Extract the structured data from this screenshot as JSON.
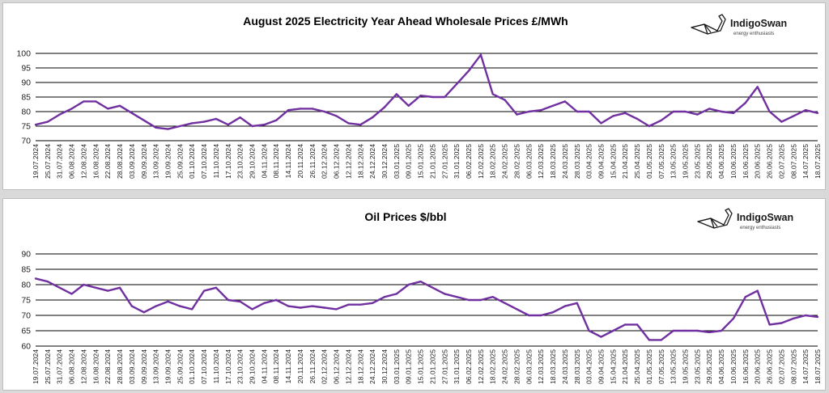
{
  "chart_data": [
    {
      "type": "line",
      "title": "August 2025 Electricity Year Ahead Wholesale Prices £/MWh",
      "ylim": [
        70,
        100
      ],
      "yticks": [
        70,
        75,
        80,
        85,
        90,
        95,
        100
      ],
      "grid": true,
      "line_color": "#7030a0",
      "x": [
        "19.07.2024",
        "25.07.2024",
        "31.07.2024",
        "06.08.2024",
        "12.08.2024",
        "16.08.2024",
        "22.08.2024",
        "28.08.2024",
        "03.09.2024",
        "09.09.2024",
        "13.09.2024",
        "19.09.2024",
        "25.09.2024",
        "01.10.2024",
        "07.10.2024",
        "11.10.2024",
        "17.10.2024",
        "23.10.2024",
        "29.10.2024",
        "04.11.2024",
        "08.11.2024",
        "14.11.2024",
        "20.11.2024",
        "26.11.2024",
        "02.12.2024",
        "06.12.2024",
        "12.12.2024",
        "18.12.2024",
        "24.12.2024",
        "30.12.2024",
        "03.01.2025",
        "09.01.2025",
        "15.01.2025",
        "21.01.2025",
        "27.01.2025",
        "31.01.2025",
        "06.02.2025",
        "12.02.2025",
        "18.02.2025",
        "24.02.2025",
        "28.02.2025",
        "06.03.2025",
        "12.03.2025",
        "18.03.2025",
        "24.03.2025",
        "28.03.2025",
        "03.04.2025",
        "09.04.2025",
        "15.04.2025",
        "21.04.2025",
        "25.04.2025",
        "01.05.2025",
        "07.05.2025",
        "13.05.2025",
        "19.05.2025",
        "23.05.2025",
        "29.05.2025",
        "04.06.2025",
        "10.06.2025",
        "16.06.2025",
        "20.06.2025",
        "26.06.2025",
        "02.07.2025",
        "08.07.2025",
        "14.07.2025",
        "18.07.2025"
      ],
      "values": [
        75.5,
        76.5,
        79,
        81,
        83.5,
        83.5,
        81,
        82,
        79.5,
        77,
        74.5,
        74,
        75,
        76,
        76.5,
        77.5,
        75.5,
        78,
        75,
        75.5,
        77,
        80.5,
        81,
        81,
        80,
        78.5,
        76,
        75.5,
        78,
        81.5,
        86,
        82,
        85.5,
        85,
        85,
        89.5,
        94,
        99.5,
        86,
        84,
        79,
        80,
        80.5,
        82,
        83.5,
        80,
        80,
        76,
        78.5,
        79.5,
        77.5,
        75,
        77,
        80,
        80,
        79,
        81,
        80,
        79.5,
        83,
        88.5,
        80,
        76.5,
        78.5,
        80.5,
        79.5
      ]
    },
    {
      "type": "line",
      "title": "Oil Prices $/bbl",
      "ylim": [
        60,
        90
      ],
      "yticks": [
        60,
        65,
        70,
        75,
        80,
        85,
        90
      ],
      "grid": true,
      "line_color": "#7030a0",
      "x": [
        "19.07.2024",
        "25.07.2024",
        "31.07.2024",
        "06.08.2024",
        "12.08.2024",
        "16.08.2024",
        "22.08.2024",
        "28.08.2024",
        "03.09.2024",
        "09.09.2024",
        "13.09.2024",
        "19.09.2024",
        "25.09.2024",
        "01.10.2024",
        "07.10.2024",
        "11.10.2024",
        "17.10.2024",
        "23.10.2024",
        "29.10.2024",
        "04.11.2024",
        "08.11.2024",
        "14.11.2024",
        "20.11.2024",
        "26.11.2024",
        "02.12.2024",
        "06.12.2024",
        "12.12.2024",
        "18.12.2024",
        "24.12.2024",
        "30.12.2024",
        "03.01.2025",
        "09.01.2025",
        "15.01.2025",
        "21.01.2025",
        "27.01.2025",
        "31.01.2025",
        "06.02.2025",
        "12.02.2025",
        "18.02.2025",
        "24.02.2025",
        "28.02.2025",
        "06.03.2025",
        "12.03.2025",
        "18.03.2025",
        "24.03.2025",
        "28.03.2025",
        "03.04.2025",
        "09.04.2025",
        "15.04.2025",
        "21.04.2025",
        "25.04.2025",
        "01.05.2025",
        "07.05.2025",
        "13.05.2025",
        "19.05.2025",
        "23.05.2025",
        "29.05.2025",
        "04.06.2025",
        "10.06.2025",
        "16.06.2025",
        "20.06.2025",
        "26.06.2025",
        "02.07.2025",
        "08.07.2025",
        "14.07.2025",
        "18.07.2025"
      ],
      "values": [
        82,
        81,
        79,
        77,
        80,
        79,
        78,
        79,
        73,
        71,
        73,
        74.5,
        73,
        72,
        78,
        79,
        75,
        74.5,
        72,
        74,
        75,
        73,
        72.5,
        73,
        72.5,
        72,
        73.5,
        73.5,
        74,
        76,
        77,
        80,
        81,
        79,
        77,
        76,
        75,
        75,
        76,
        74,
        72,
        70,
        70,
        71,
        73,
        74,
        65,
        63,
        65,
        67,
        67,
        62,
        62,
        65,
        65,
        65,
        64.5,
        65,
        69,
        76,
        78,
        67,
        67.5,
        69,
        70,
        69.5
      ]
    }
  ],
  "logo": {
    "name": "IndigoSwan",
    "tagline": "energy enthusiasts"
  }
}
